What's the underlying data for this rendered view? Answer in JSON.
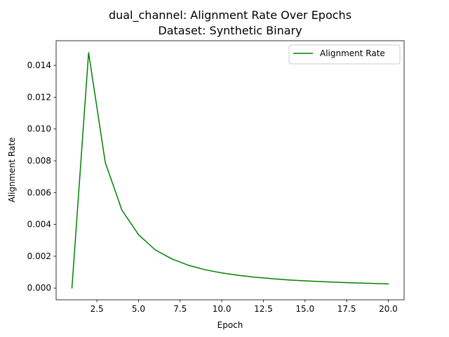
{
  "chart_data": {
    "type": "line",
    "title": "dual_channel: Alignment Rate Over Epochs",
    "subtitle": "Dataset: Synthetic Binary",
    "xlabel": "Epoch",
    "ylabel": "Alignment Rate",
    "xlim": [
      0.05,
      20.95
    ],
    "ylim": [
      -0.00074,
      0.01555
    ],
    "xticks": [
      2.5,
      5.0,
      7.5,
      10.0,
      12.5,
      15.0,
      17.5,
      20.0
    ],
    "xtick_labels": [
      "2.5",
      "5.0",
      "7.5",
      "10.0",
      "12.5",
      "15.0",
      "17.5",
      "20.0"
    ],
    "yticks": [
      0.0,
      0.002,
      0.004,
      0.006,
      0.008,
      0.01,
      0.012,
      0.014
    ],
    "ytick_labels": [
      "0.000",
      "0.002",
      "0.004",
      "0.006",
      "0.008",
      "0.010",
      "0.012",
      "0.014"
    ],
    "grid": false,
    "legend": "top-right",
    "series": [
      {
        "name": "Alignment Rate",
        "color": "#008000",
        "x": [
          1,
          2,
          3,
          4,
          5,
          6,
          7,
          8,
          9,
          10,
          11,
          12,
          13,
          14,
          15,
          16,
          17,
          18,
          19,
          20
        ],
        "y": [
          0.0,
          0.0148,
          0.0079,
          0.0049,
          0.00335,
          0.0024,
          0.00183,
          0.00143,
          0.00115,
          0.00095,
          0.0008,
          0.00068,
          0.00059,
          0.00051,
          0.00045,
          0.0004,
          0.00036,
          0.00032,
          0.00029,
          0.00026
        ]
      }
    ]
  }
}
